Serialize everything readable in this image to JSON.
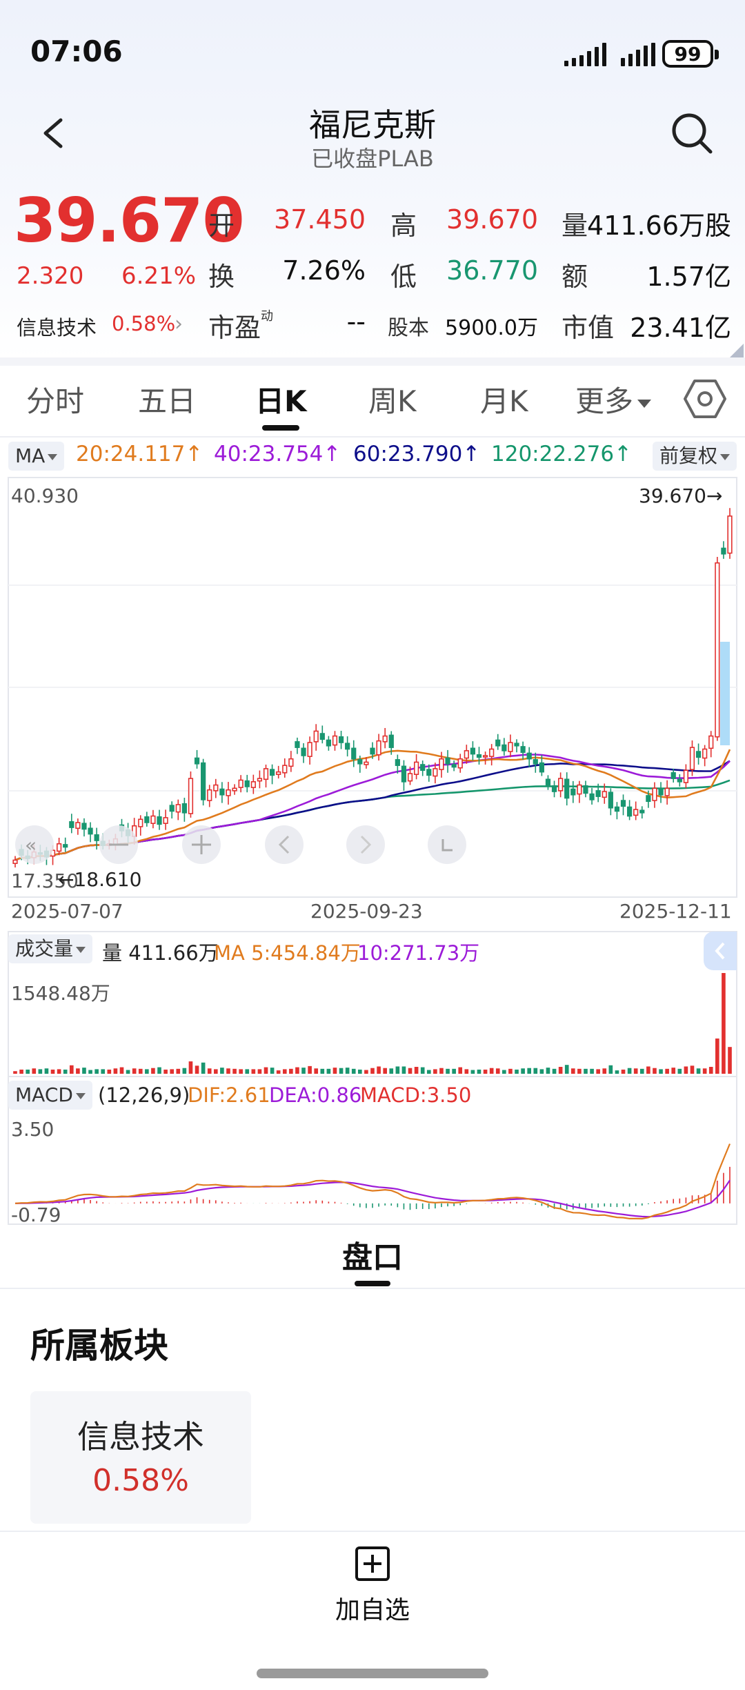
{
  "status": {
    "time": "07:06",
    "battery": "99"
  },
  "header": {
    "title": "福尼克斯",
    "subtitle": "已收盘PLAB"
  },
  "quote": {
    "price": "39.670",
    "change": "2.320",
    "change_pct": "6.21%",
    "sector_name": "信息技术",
    "sector_pct": "0.58%",
    "fields": {
      "open_label": "开",
      "open": "37.450",
      "high_label": "高",
      "high": "39.670",
      "volume_label": "量",
      "volume": "411.66万股",
      "turnover_label": "换",
      "turnover": "7.26%",
      "low_label": "低",
      "low": "36.770",
      "amount_label": "额",
      "amount": "1.57亿",
      "pe_label": "市盈",
      "pe_sup": "动",
      "pe": "--",
      "shares_label": "股本",
      "shares": "5900.0万",
      "mcap_label": "市值",
      "mcap": "23.41亿"
    }
  },
  "tabs": [
    "分时",
    "五日",
    "日K",
    "周K",
    "月K",
    "更多"
  ],
  "active_tab": "日K",
  "ma": {
    "selector": "MA",
    "ma20": "20:24.117↑",
    "ma40": "40:23.754↑",
    "ma60": "60:23.790↑",
    "ma120": "120:22.276↑",
    "adjust": "前复权"
  },
  "colors": {
    "up": "#e2302f",
    "down": "#199670",
    "ma20": "#e07b1e",
    "ma40": "#9c1bd8",
    "ma60": "#0d0e8a",
    "ma120": "#15966c"
  },
  "chart_labels": {
    "y_max": "40.930",
    "y_min": "17.350",
    "last_price": "39.670→",
    "low_marker": "←18.610",
    "dates": [
      "2025-07-07",
      "2025-09-23",
      "2025-12-11"
    ]
  },
  "volume": {
    "selector": "成交量",
    "vol": "量 411.66万",
    "ma5": "MA 5:454.84万",
    "ma10": "10:271.73万",
    "y_max": "1548.48万"
  },
  "macd": {
    "selector": "MACD",
    "params": "(12,26,9)",
    "dif": "DIF:2.61",
    "dea": "DEA:0.86",
    "macd": "MACD:3.50",
    "y_max": "3.50",
    "y_min": "-0.79"
  },
  "pankou": "盘口",
  "sector_section": {
    "title": "所属板块",
    "card_name": "信息技术",
    "card_pct": "0.58%"
  },
  "bottom": {
    "add_label": "加自选"
  },
  "chart_data": [
    {
      "type": "candlestick",
      "title": "",
      "x_range": [
        "2025-07-07",
        "2025-12-11"
      ],
      "ylim": [
        17.35,
        40.93
      ],
      "last_close": 39.67,
      "low_marker": 18.61,
      "close_series_approx": [
        18.6,
        18.9,
        18.7,
        19.1,
        19.0,
        18.8,
        19.2,
        19.6,
        19.4,
        20.6,
        20.9,
        20.5,
        20.2,
        19.8,
        19.5,
        19.6,
        19.9,
        20.4,
        20.1,
        20.7,
        21.1,
        20.9,
        21.3,
        20.8,
        21.2,
        21.6,
        22.0,
        21.5,
        23.6,
        24.5,
        22.3,
        22.9,
        23.2,
        22.6,
        22.9,
        23.0,
        23.5,
        23.1,
        23.4,
        23.6,
        24.2,
        23.8,
        24.0,
        24.4,
        24.8,
        25.5,
        25.0,
        25.8,
        26.5,
        26.0,
        25.6,
        26.2,
        25.8,
        25.4,
        24.8,
        24.5,
        24.6,
        25.1,
        25.9,
        26.2,
        25.5,
        24.4,
        23.4,
        23.9,
        24.6,
        24.1,
        23.8,
        24.2,
        24.8,
        24.5,
        24.3,
        24.8,
        25.3,
        25.1,
        24.9,
        25.0,
        25.4,
        25.6,
        25.3,
        25.8,
        25.6,
        25.2,
        24.8,
        24.5,
        24.0,
        23.2,
        22.8,
        23.6,
        22.4,
        22.6,
        23.2,
        22.7,
        22.3,
        22.5,
        22.8,
        21.8,
        21.6,
        21.9,
        21.3,
        21.7,
        21.5,
        22.2,
        23.0,
        22.6,
        23.0,
        23.6,
        23.4,
        24.1,
        25.5,
        24.9,
        25.4,
        26.2,
        36.8,
        37.35,
        39.67
      ],
      "ma_series": [
        {
          "name": "MA20",
          "last": 24.117
        },
        {
          "name": "MA40",
          "last": 23.754
        },
        {
          "name": "MA60",
          "last": 23.79
        },
        {
          "name": "MA120",
          "last": 22.276
        }
      ]
    },
    {
      "type": "bar",
      "title": "",
      "ylim": [
        0,
        1548.48
      ],
      "unit": "万",
      "last_value": 411.66,
      "peak_value": 1548.48
    },
    {
      "type": "line",
      "title": "",
      "ylim": [
        -0.79,
        3.5
      ],
      "params": "(12,26,9)",
      "dif_last": 2.61,
      "dea_last": 0.86,
      "macd_last": 3.5
    }
  ]
}
